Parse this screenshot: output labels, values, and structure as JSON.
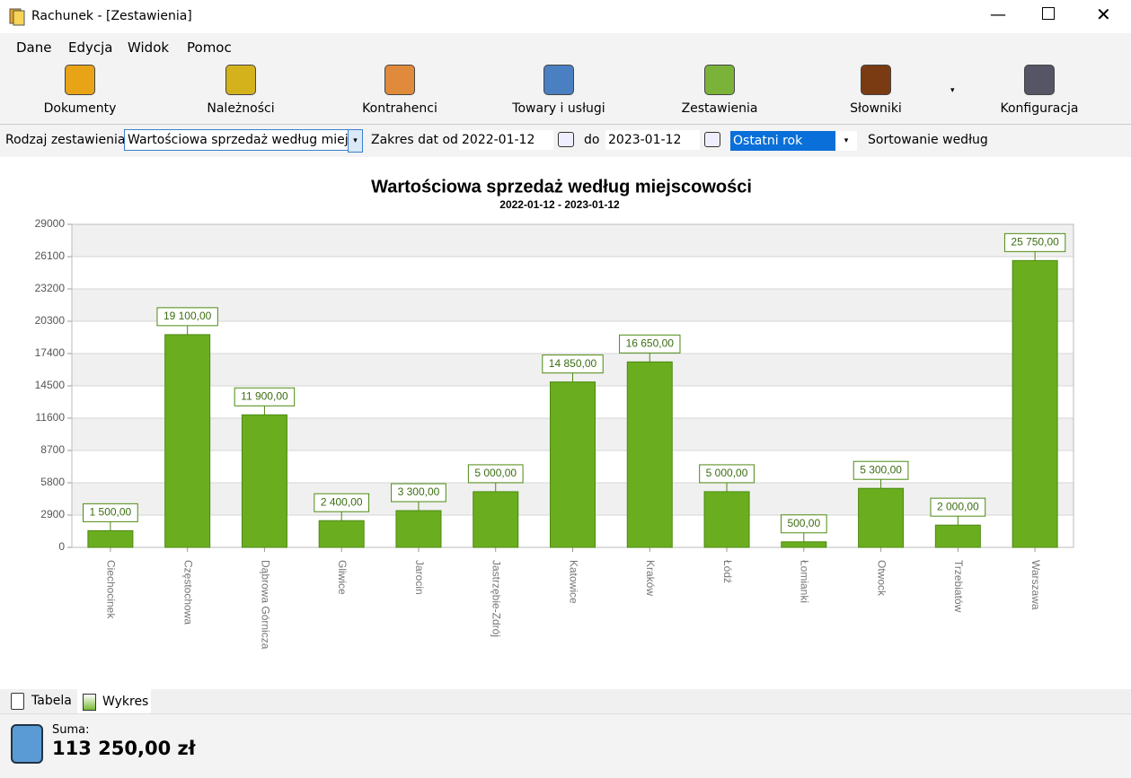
{
  "window": {
    "title": "Rachunek - [Zestawienia]"
  },
  "menu": [
    "Dane",
    "Edycja",
    "Widok",
    "Pomoc"
  ],
  "toolbar": [
    "Dokumenty",
    "Należności",
    "Kontrahenci",
    "Towary i usługi",
    "Zestawienia",
    "Słowniki",
    "Konfiguracja"
  ],
  "filter": {
    "type_label": "Rodzaj zestawienia",
    "type_value": "Wartościowa sprzedaż według miejscowości",
    "date_from_label": "Zakres dat od",
    "date_from": "2022-01-12",
    "date_to_label": "do",
    "date_to": "2023-01-12",
    "period": "Ostatni rok",
    "sort_label": "Sortowanie według"
  },
  "tabs": [
    "Tabela",
    "Wykres"
  ],
  "summary": {
    "label": "Suma:",
    "value": "113 250,00 zł"
  },
  "chart_data": {
    "type": "bar",
    "title": "Wartościowa sprzedaż według miejscowości",
    "subtitle": "2022-01-12 - 2023-01-12",
    "categories": [
      "Ciechocinek",
      "Częstochowa",
      "Dąbrowa Górnicza",
      "Gliwice",
      "Jarocin",
      "Jastrzębie-Zdrój",
      "Katowice",
      "Kraków",
      "Łódź",
      "Łomianki",
      "Otwock",
      "Trzebiatów",
      "Warszawa"
    ],
    "values": [
      1500,
      19100,
      11900,
      2400,
      3300,
      5000,
      14850,
      16650,
      5000,
      500,
      5300,
      2000,
      25750
    ],
    "value_labels": [
      "1 500,00",
      "19 100,00",
      "11 900,00",
      "2 400,00",
      "3 300,00",
      "5 000,00",
      "14 850,00",
      "16 650,00",
      "5 000,00",
      "500,00",
      "5 300,00",
      "2 000,00",
      "25 750,00"
    ],
    "color": "#6aad1f",
    "ylim": [
      0,
      29000
    ],
    "yticks": [
      0,
      2900,
      5800,
      8700,
      11600,
      14500,
      17400,
      20300,
      23200,
      26100,
      29000
    ],
    "grid": true
  }
}
